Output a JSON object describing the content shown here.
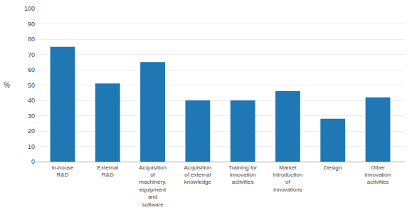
{
  "chart_data": {
    "type": "bar",
    "categories": [
      "In-house\nR&D",
      "External\nR&D",
      "Acquisition\nof\nmachinery,\nequipment\nand\nsoftware",
      "Acquisition\nof external\nknowledge",
      "Training for\ninnovation\nactivities",
      "Market\nintroduction\nof\ninnovations",
      "Design",
      "Other\ninnovation\nactivities"
    ],
    "values": [
      75,
      51,
      65,
      40,
      40,
      46,
      28,
      42
    ],
    "color": "#1f77b4",
    "ylabel": "%",
    "ylim": [
      0,
      100
    ],
    "yticks": [
      0,
      10,
      20,
      30,
      40,
      50,
      60,
      70,
      80,
      90,
      100
    ],
    "grid": true
  }
}
